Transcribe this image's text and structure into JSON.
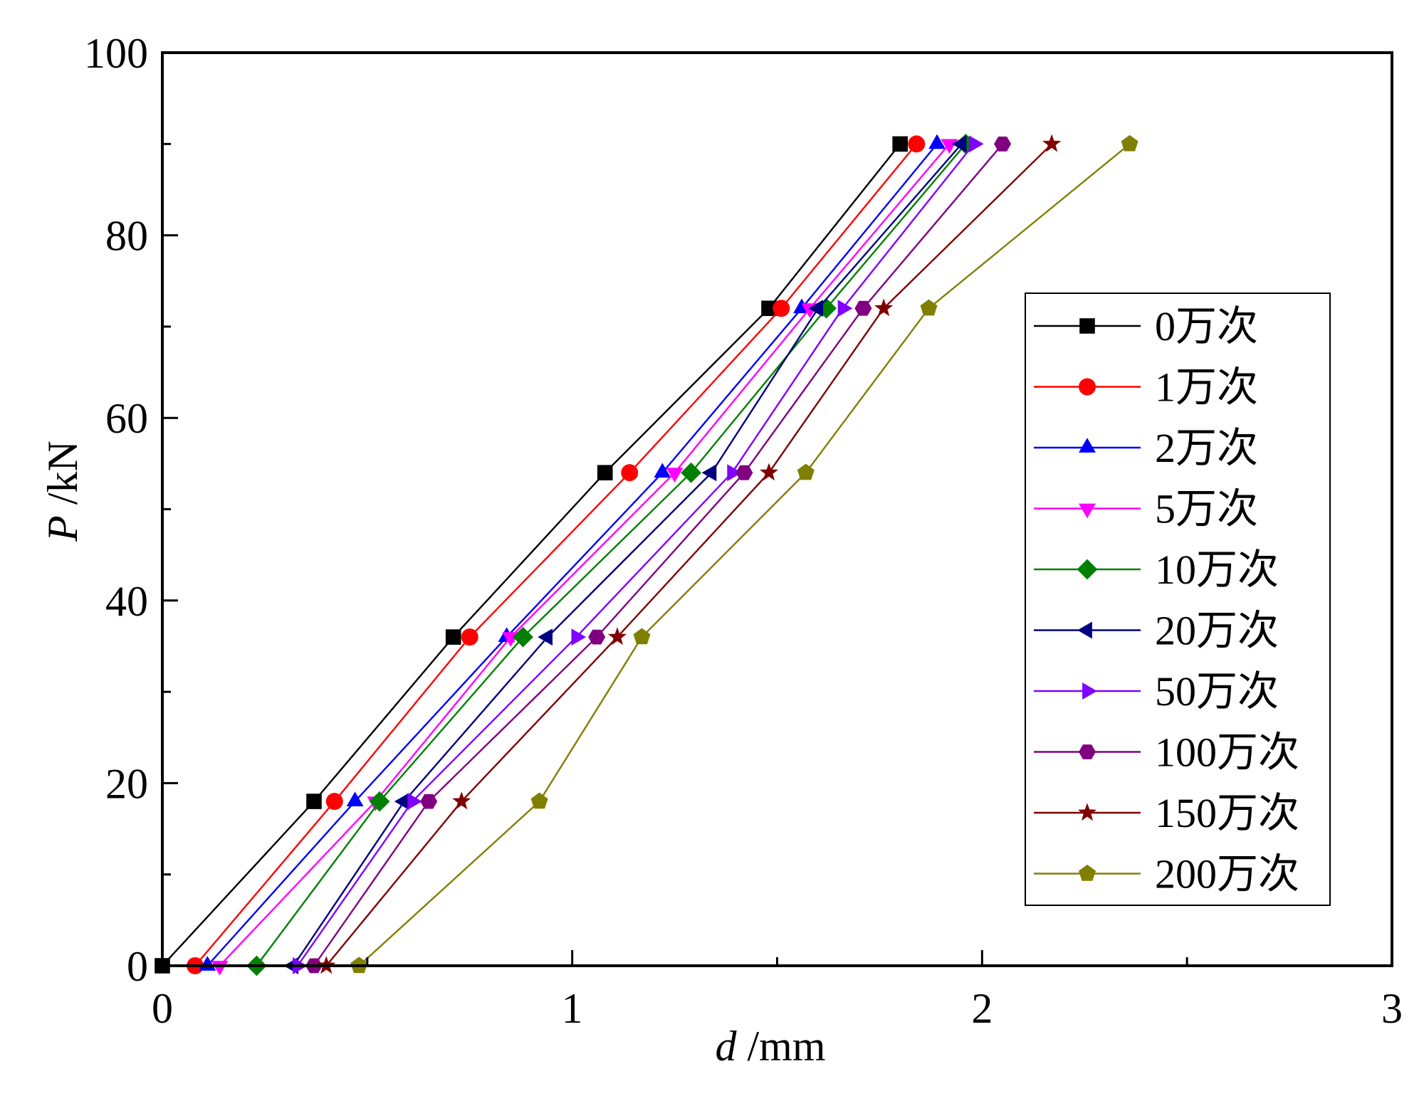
{
  "chart_data": {
    "type": "line",
    "title": "",
    "xlabel": {
      "var": "d",
      "unit": " /mm"
    },
    "ylabel": {
      "var": "P",
      "unit": " /kN"
    },
    "xlim": [
      0,
      3
    ],
    "ylim": [
      0,
      100
    ],
    "xticks": [
      0,
      1,
      2,
      3
    ],
    "xticklabels": [
      "0",
      "1",
      "2",
      "3"
    ],
    "xminor": [
      0.5,
      1.5,
      2.5
    ],
    "yticks": [
      0,
      20,
      40,
      60,
      80,
      100
    ],
    "yticklabels": [
      "0",
      "20",
      "40",
      "60",
      "80",
      "100"
    ],
    "yminor": [
      10,
      30,
      50,
      70,
      90
    ],
    "grid": false,
    "legend_position": "right",
    "y": [
      0,
      18,
      36,
      54,
      72,
      90
    ],
    "series": [
      {
        "name": "0万次",
        "color": "#000000",
        "marker": "square",
        "x": [
          0.0,
          0.37,
          0.71,
          1.08,
          1.48,
          1.8
        ]
      },
      {
        "name": "1万次",
        "color": "#ff0000",
        "marker": "circle",
        "x": [
          0.08,
          0.42,
          0.75,
          1.14,
          1.51,
          1.84
        ]
      },
      {
        "name": "2万次",
        "color": "#0000ff",
        "marker": "triangle-up",
        "x": [
          0.11,
          0.47,
          0.84,
          1.22,
          1.56,
          1.89
        ]
      },
      {
        "name": "5万次",
        "color": "#ff00ff",
        "marker": "triangle-down",
        "x": [
          0.14,
          0.52,
          0.85,
          1.25,
          1.58,
          1.92
        ]
      },
      {
        "name": "10万次",
        "color": "#008000",
        "marker": "diamond",
        "x": [
          0.23,
          0.53,
          0.88,
          1.29,
          1.62,
          1.96
        ]
      },
      {
        "name": "20万次",
        "color": "#000080",
        "marker": "triangle-left",
        "x": [
          0.32,
          0.59,
          0.94,
          1.34,
          1.6,
          1.95
        ]
      },
      {
        "name": "50万次",
        "color": "#8000ff",
        "marker": "triangle-right",
        "x": [
          0.33,
          0.61,
          1.01,
          1.39,
          1.66,
          1.98
        ]
      },
      {
        "name": "100万次",
        "color": "#800080",
        "marker": "hexagon",
        "x": [
          0.37,
          0.65,
          1.06,
          1.42,
          1.71,
          2.05
        ]
      },
      {
        "name": "150万次",
        "color": "#800000",
        "marker": "star",
        "x": [
          0.4,
          0.73,
          1.11,
          1.48,
          1.76,
          2.17
        ]
      },
      {
        "name": "200万次",
        "color": "#808000",
        "marker": "pentagon",
        "x": [
          0.48,
          0.92,
          1.17,
          1.57,
          1.87,
          2.36
        ]
      }
    ]
  }
}
